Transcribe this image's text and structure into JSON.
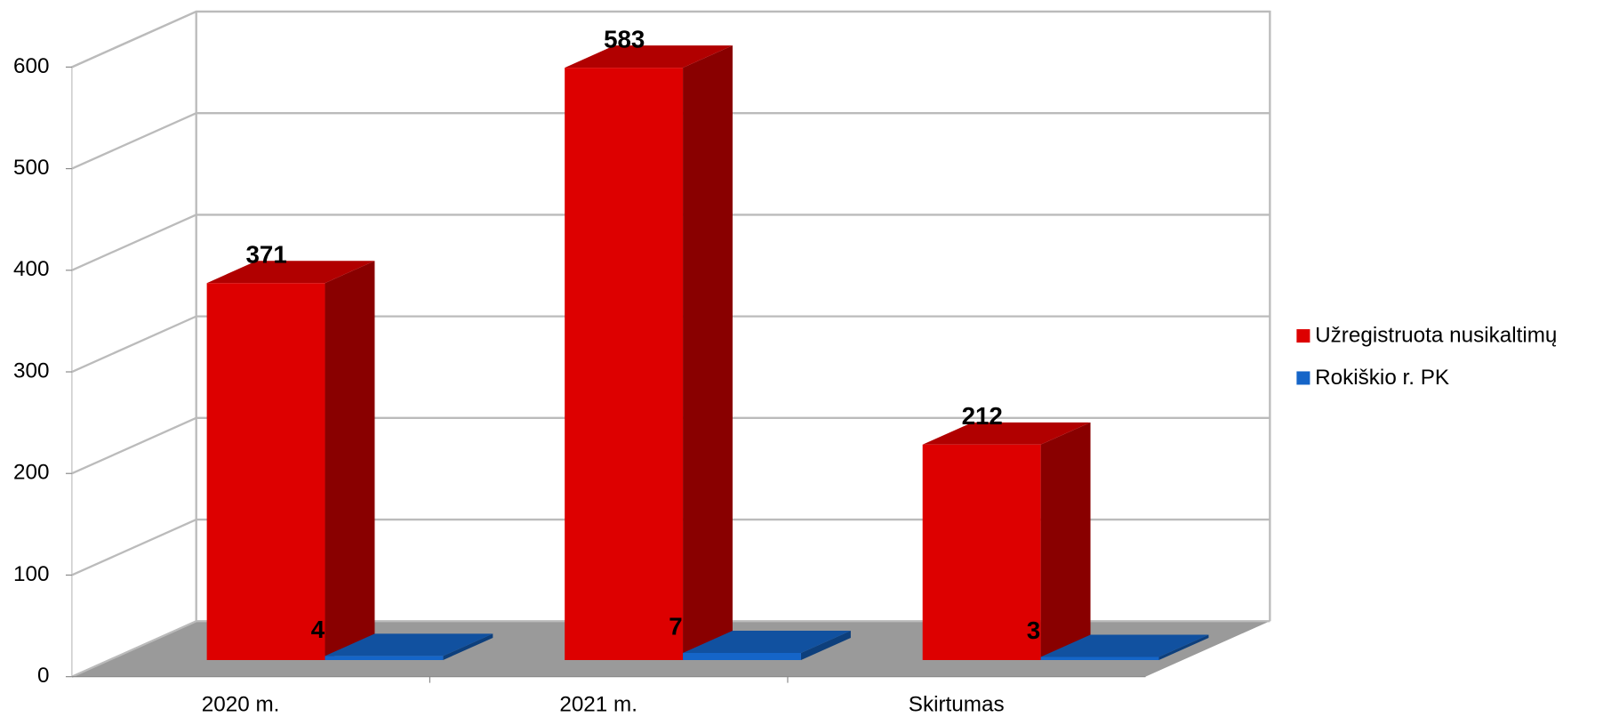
{
  "chart_data": {
    "type": "bar3d",
    "categories": [
      "2020 m.",
      "2021 m.",
      "Skirtumas"
    ],
    "series": [
      {
        "name": "Užregistruota nusikaltimų",
        "color": "#dd0000",
        "values": [
          371,
          583,
          212
        ]
      },
      {
        "name": "Rokiškio r. PK",
        "color": "#1565c8",
        "values": [
          4,
          7,
          3
        ]
      }
    ],
    "ylim": [
      0,
      600
    ],
    "yticks": [
      0,
      100,
      200,
      300,
      400,
      500,
      600
    ],
    "grid": true,
    "legend": "right"
  }
}
